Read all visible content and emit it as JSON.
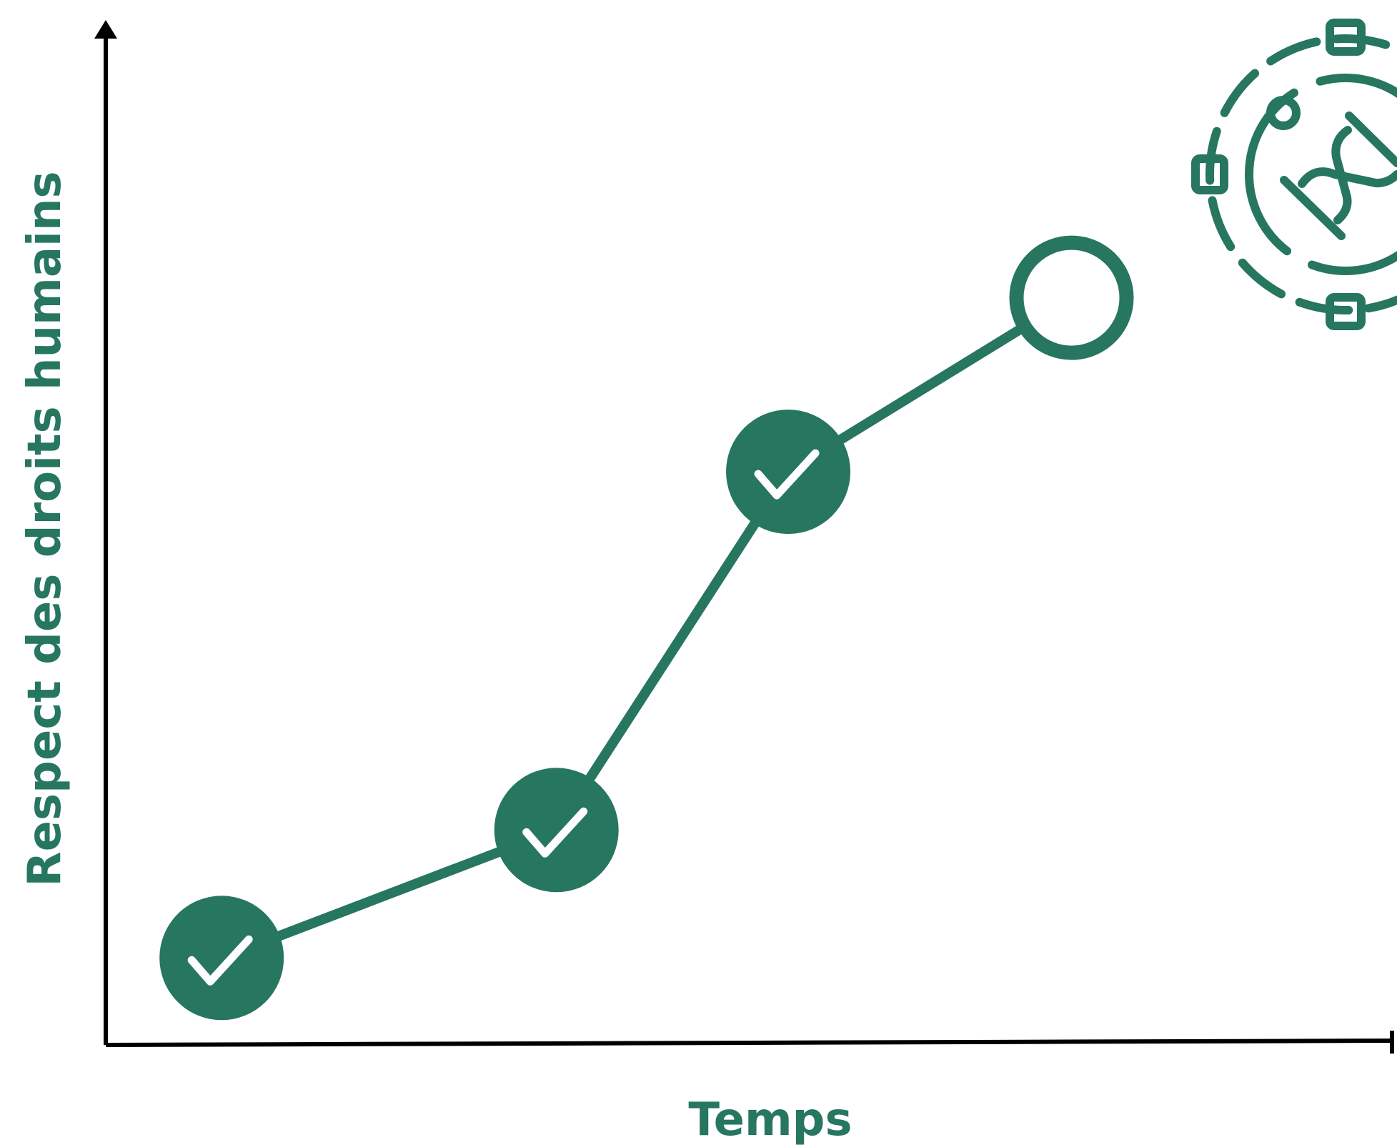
{
  "colors": {
    "accent": "#27765F",
    "axis": "#000000",
    "background": "#FFFFFF",
    "check": "#FFFFFF"
  },
  "chart_data": {
    "type": "line",
    "title": "",
    "xlabel": "Temps",
    "ylabel": "Respect des droits humains",
    "grid": false,
    "legend": "none",
    "xlim": [
      0,
      10
    ],
    "ylim": [
      0,
      10
    ],
    "points": [
      {
        "x": 0.9,
        "y": 0.85,
        "status": "completed"
      },
      {
        "x": 3.5,
        "y": 2.1,
        "status": "completed"
      },
      {
        "x": 5.3,
        "y": 5.6,
        "status": "completed"
      },
      {
        "x": 7.5,
        "y": 7.3,
        "status": "pending"
      }
    ],
    "icon": "gear-with-handshake-icon"
  }
}
